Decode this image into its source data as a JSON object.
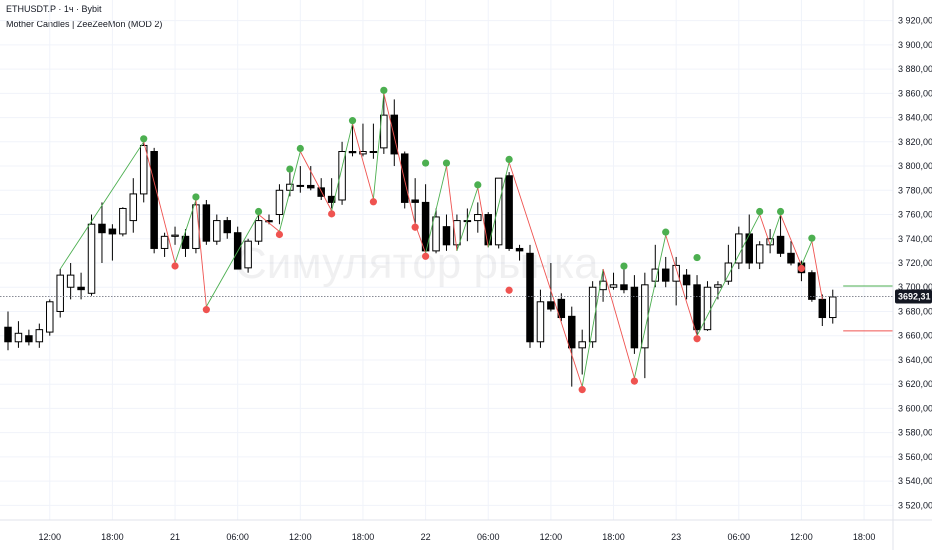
{
  "header": {
    "symbol_line": "ETHUSDT.P · 1ч · Bybit",
    "indicator_line": "Mother Candles | ZeeZeeMon (MOD 2)"
  },
  "watermark": "Симулятор рынка",
  "colors": {
    "bull_fill": "#ffffff",
    "bear_fill": "#000000",
    "candle_outline": "#000000",
    "pivot_high": "#4caf50",
    "pivot_low": "#ef5350",
    "zigzag_up": "#4caf50",
    "zigzag_down": "#ef5350",
    "grid": "#f0f3fa",
    "axis_text": "#131722",
    "last_price_bg": "#131722",
    "level_high": "#4caf50",
    "level_low": "#ef5350"
  },
  "chart_data": {
    "type": "candlestick",
    "timeframe": "1ч",
    "ylim": [
      3510,
      3930
    ],
    "y_ticks": [
      3520,
      3540,
      3560,
      3580,
      3600,
      3620,
      3640,
      3660,
      3680,
      3700,
      3720,
      3740,
      3760,
      3780,
      3800,
      3820,
      3840,
      3860,
      3880,
      3900,
      3920
    ],
    "y_tick_labels": [
      "3 520,00",
      "3 540,00",
      "3 560,00",
      "3 580,00",
      "3 600,00",
      "3 620,00",
      "3 640,00",
      "3 660,00",
      "3 680,00",
      "3 700,00",
      "3 720,00",
      "3 740,00",
      "3 760,00",
      "3 780,00",
      "3 800,00",
      "3 820,00",
      "3 840,00",
      "3 860,00",
      "3 880,00",
      "3 900,00",
      "3 920,00"
    ],
    "x_ticks": [
      {
        "bar": 4,
        "label": "12:00"
      },
      {
        "bar": 10,
        "label": "18:00"
      },
      {
        "bar": 16,
        "label": "21"
      },
      {
        "bar": 22,
        "label": "06:00"
      },
      {
        "bar": 28,
        "label": "12:00"
      },
      {
        "bar": 34,
        "label": "18:00"
      },
      {
        "bar": 40,
        "label": "22"
      },
      {
        "bar": 46,
        "label": "06:00"
      },
      {
        "bar": 52,
        "label": "12:00"
      },
      {
        "bar": 58,
        "label": "18:00"
      },
      {
        "bar": 64,
        "label": "23"
      },
      {
        "bar": 70,
        "label": "06:00"
      },
      {
        "bar": 76,
        "label": "12:00"
      },
      {
        "bar": 82,
        "label": "18:00"
      }
    ],
    "candles": [
      {
        "o": 3667,
        "h": 3680,
        "l": 3648,
        "c": 3655
      },
      {
        "o": 3655,
        "h": 3672,
        "l": 3650,
        "c": 3662
      },
      {
        "o": 3660,
        "h": 3665,
        "l": 3652,
        "c": 3655
      },
      {
        "o": 3655,
        "h": 3670,
        "l": 3650,
        "c": 3665
      },
      {
        "o": 3663,
        "h": 3690,
        "l": 3660,
        "c": 3688
      },
      {
        "o": 3680,
        "h": 3715,
        "l": 3675,
        "c": 3710
      },
      {
        "o": 3700,
        "h": 3720,
        "l": 3690,
        "c": 3710
      },
      {
        "o": 3700,
        "h": 3712,
        "l": 3690,
        "c": 3698
      },
      {
        "o": 3695,
        "h": 3760,
        "l": 3693,
        "c": 3752
      },
      {
        "o": 3752,
        "h": 3770,
        "l": 3720,
        "c": 3745
      },
      {
        "o": 3748,
        "h": 3752,
        "l": 3722,
        "c": 3744
      },
      {
        "o": 3744,
        "h": 3766,
        "l": 3742,
        "c": 3765
      },
      {
        "o": 3755,
        "h": 3790,
        "l": 3745,
        "c": 3777
      },
      {
        "o": 3777,
        "h": 3820,
        "l": 3770,
        "c": 3817
      },
      {
        "o": 3812,
        "h": 3815,
        "l": 3728,
        "c": 3732
      },
      {
        "o": 3732,
        "h": 3745,
        "l": 3725,
        "c": 3742
      },
      {
        "o": 3742,
        "h": 3750,
        "l": 3735,
        "c": 3743
      },
      {
        "o": 3742,
        "h": 3748,
        "l": 3725,
        "c": 3732
      },
      {
        "o": 3732,
        "h": 3772,
        "l": 3728,
        "c": 3768
      },
      {
        "o": 3768,
        "h": 3772,
        "l": 3735,
        "c": 3738
      },
      {
        "o": 3738,
        "h": 3760,
        "l": 3735,
        "c": 3755
      },
      {
        "o": 3755,
        "h": 3758,
        "l": 3740,
        "c": 3745
      },
      {
        "o": 3745,
        "h": 3750,
        "l": 3715,
        "c": 3715
      },
      {
        "o": 3716,
        "h": 3740,
        "l": 3712,
        "c": 3738
      },
      {
        "o": 3738,
        "h": 3760,
        "l": 3735,
        "c": 3755
      },
      {
        "o": 3755,
        "h": 3760,
        "l": 3752,
        "c": 3754
      },
      {
        "o": 3760,
        "h": 3785,
        "l": 3752,
        "c": 3780
      },
      {
        "o": 3780,
        "h": 3795,
        "l": 3775,
        "c": 3785
      },
      {
        "o": 3784,
        "h": 3800,
        "l": 3778,
        "c": 3784
      },
      {
        "o": 3784,
        "h": 3800,
        "l": 3780,
        "c": 3782
      },
      {
        "o": 3782,
        "h": 3790,
        "l": 3772,
        "c": 3775
      },
      {
        "o": 3775,
        "h": 3790,
        "l": 3765,
        "c": 3770
      },
      {
        "o": 3772,
        "h": 3820,
        "l": 3768,
        "c": 3812
      },
      {
        "o": 3812,
        "h": 3835,
        "l": 3808,
        "c": 3811
      },
      {
        "o": 3810,
        "h": 3835,
        "l": 3808,
        "c": 3812
      },
      {
        "o": 3812,
        "h": 3835,
        "l": 3806,
        "c": 3812
      },
      {
        "o": 3815,
        "h": 3860,
        "l": 3810,
        "c": 3842
      },
      {
        "o": 3842,
        "h": 3855,
        "l": 3800,
        "c": 3810
      },
      {
        "o": 3810,
        "h": 3812,
        "l": 3765,
        "c": 3770
      },
      {
        "o": 3772,
        "h": 3790,
        "l": 3750,
        "c": 3770
      },
      {
        "o": 3770,
        "h": 3785,
        "l": 3725,
        "c": 3730
      },
      {
        "o": 3730,
        "h": 3765,
        "l": 3728,
        "c": 3758
      },
      {
        "o": 3750,
        "h": 3760,
        "l": 3730,
        "c": 3735
      },
      {
        "o": 3735,
        "h": 3760,
        "l": 3730,
        "c": 3755
      },
      {
        "o": 3755,
        "h": 3765,
        "l": 3738,
        "c": 3755
      },
      {
        "o": 3755,
        "h": 3770,
        "l": 3745,
        "c": 3760
      },
      {
        "o": 3760,
        "h": 3762,
        "l": 3733,
        "c": 3735
      },
      {
        "o": 3735,
        "h": 3790,
        "l": 3732,
        "c": 3790
      },
      {
        "o": 3792,
        "h": 3795,
        "l": 3730,
        "c": 3732
      },
      {
        "o": 3732,
        "h": 3735,
        "l": 3722,
        "c": 3730
      },
      {
        "o": 3728,
        "h": 3735,
        "l": 3650,
        "c": 3655
      },
      {
        "o": 3655,
        "h": 3698,
        "l": 3650,
        "c": 3688
      },
      {
        "o": 3688,
        "h": 3720,
        "l": 3680,
        "c": 3682
      },
      {
        "o": 3690,
        "h": 3695,
        "l": 3672,
        "c": 3675
      },
      {
        "o": 3676,
        "h": 3684,
        "l": 3618,
        "c": 3650
      },
      {
        "o": 3650,
        "h": 3665,
        "l": 3628,
        "c": 3655
      },
      {
        "o": 3655,
        "h": 3705,
        "l": 3650,
        "c": 3700
      },
      {
        "o": 3698,
        "h": 3715,
        "l": 3688,
        "c": 3705
      },
      {
        "o": 3700,
        "h": 3712,
        "l": 3698,
        "c": 3702
      },
      {
        "o": 3702,
        "h": 3715,
        "l": 3695,
        "c": 3698
      },
      {
        "o": 3700,
        "h": 3710,
        "l": 3645,
        "c": 3650
      },
      {
        "o": 3650,
        "h": 3712,
        "l": 3625,
        "c": 3702
      },
      {
        "o": 3705,
        "h": 3735,
        "l": 3700,
        "c": 3715
      },
      {
        "o": 3715,
        "h": 3725,
        "l": 3700,
        "c": 3705
      },
      {
        "o": 3705,
        "h": 3725,
        "l": 3685,
        "c": 3718
      },
      {
        "o": 3710,
        "h": 3715,
        "l": 3690,
        "c": 3702
      },
      {
        "o": 3702,
        "h": 3710,
        "l": 3660,
        "c": 3665
      },
      {
        "o": 3665,
        "h": 3705,
        "l": 3664,
        "c": 3700
      },
      {
        "o": 3700,
        "h": 3705,
        "l": 3690,
        "c": 3702
      },
      {
        "o": 3705,
        "h": 3735,
        "l": 3702,
        "c": 3720
      },
      {
        "o": 3720,
        "h": 3750,
        "l": 3715,
        "c": 3744
      },
      {
        "o": 3744,
        "h": 3760,
        "l": 3715,
        "c": 3720
      },
      {
        "o": 3720,
        "h": 3738,
        "l": 3715,
        "c": 3735
      },
      {
        "o": 3735,
        "h": 3748,
        "l": 3728,
        "c": 3740
      },
      {
        "o": 3742,
        "h": 3760,
        "l": 3725,
        "c": 3728
      },
      {
        "o": 3728,
        "h": 3738,
        "l": 3718,
        "c": 3720
      },
      {
        "o": 3720,
        "h": 3722,
        "l": 3705,
        "c": 3712
      },
      {
        "o": 3712,
        "h": 3714,
        "l": 3688,
        "c": 3690
      },
      {
        "o": 3690,
        "h": 3694,
        "l": 3668,
        "c": 3675
      },
      {
        "o": 3675,
        "h": 3698,
        "l": 3670,
        "c": 3692
      }
    ],
    "pivot_highs": [
      {
        "bar": 13,
        "price": 3820
      },
      {
        "bar": 18,
        "price": 3772
      },
      {
        "bar": 24,
        "price": 3760
      },
      {
        "bar": 27,
        "price": 3795
      },
      {
        "bar": 28,
        "price": 3812
      },
      {
        "bar": 33,
        "price": 3835
      },
      {
        "bar": 36,
        "price": 3860
      },
      {
        "bar": 40,
        "price": 3800
      },
      {
        "bar": 42,
        "price": 3800
      },
      {
        "bar": 45,
        "price": 3782
      },
      {
        "bar": 48,
        "price": 3803
      },
      {
        "bar": 59,
        "price": 3715
      },
      {
        "bar": 63,
        "price": 3743
      },
      {
        "bar": 66,
        "price": 3722
      },
      {
        "bar": 72,
        "price": 3760
      },
      {
        "bar": 74,
        "price": 3760
      },
      {
        "bar": 77,
        "price": 3738
      }
    ],
    "pivot_lows": [
      {
        "bar": 16,
        "price": 3720
      },
      {
        "bar": 19,
        "price": 3684
      },
      {
        "bar": 26,
        "price": 3746
      },
      {
        "bar": 31,
        "price": 3763
      },
      {
        "bar": 35,
        "price": 3773
      },
      {
        "bar": 39,
        "price": 3752
      },
      {
        "bar": 40,
        "price": 3728
      },
      {
        "bar": 48,
        "price": 3700
      },
      {
        "bar": 55,
        "price": 3618
      },
      {
        "bar": 60,
        "price": 3625
      },
      {
        "bar": 66,
        "price": 3660
      },
      {
        "bar": 76,
        "price": 3718
      }
    ],
    "zigzag": [
      {
        "bar": 5,
        "price": 3715
      },
      {
        "bar": 13,
        "price": 3820
      },
      {
        "bar": 16,
        "price": 3720
      },
      {
        "bar": 18,
        "price": 3772
      },
      {
        "bar": 19,
        "price": 3684
      },
      {
        "bar": 24,
        "price": 3760
      },
      {
        "bar": 26,
        "price": 3746
      },
      {
        "bar": 28,
        "price": 3812
      },
      {
        "bar": 31,
        "price": 3763
      },
      {
        "bar": 33,
        "price": 3835
      },
      {
        "bar": 35,
        "price": 3773
      },
      {
        "bar": 36,
        "price": 3860
      },
      {
        "bar": 39,
        "price": 3752
      },
      {
        "bar": 40,
        "price": 3728
      },
      {
        "bar": 42,
        "price": 3800
      },
      {
        "bar": 43,
        "price": 3730
      },
      {
        "bar": 45,
        "price": 3782
      },
      {
        "bar": 46,
        "price": 3733
      },
      {
        "bar": 48,
        "price": 3803
      },
      {
        "bar": 55,
        "price": 3618
      },
      {
        "bar": 57,
        "price": 3715
      },
      {
        "bar": 60,
        "price": 3625
      },
      {
        "bar": 63,
        "price": 3743
      },
      {
        "bar": 66,
        "price": 3660
      },
      {
        "bar": 72,
        "price": 3760
      },
      {
        "bar": 73,
        "price": 3735
      },
      {
        "bar": 74,
        "price": 3760
      },
      {
        "bar": 76,
        "price": 3718
      },
      {
        "bar": 77,
        "price": 3738
      },
      {
        "bar": 78,
        "price": 3690
      }
    ],
    "levels": [
      {
        "name": "high",
        "price": 3701,
        "from_bar": 80,
        "to_bar": 88
      },
      {
        "name": "low",
        "price": 3664,
        "from_bar": 80,
        "to_bar": 88
      }
    ],
    "last_price": 3692.31,
    "last_price_label": "3692,31",
    "grid": true
  }
}
